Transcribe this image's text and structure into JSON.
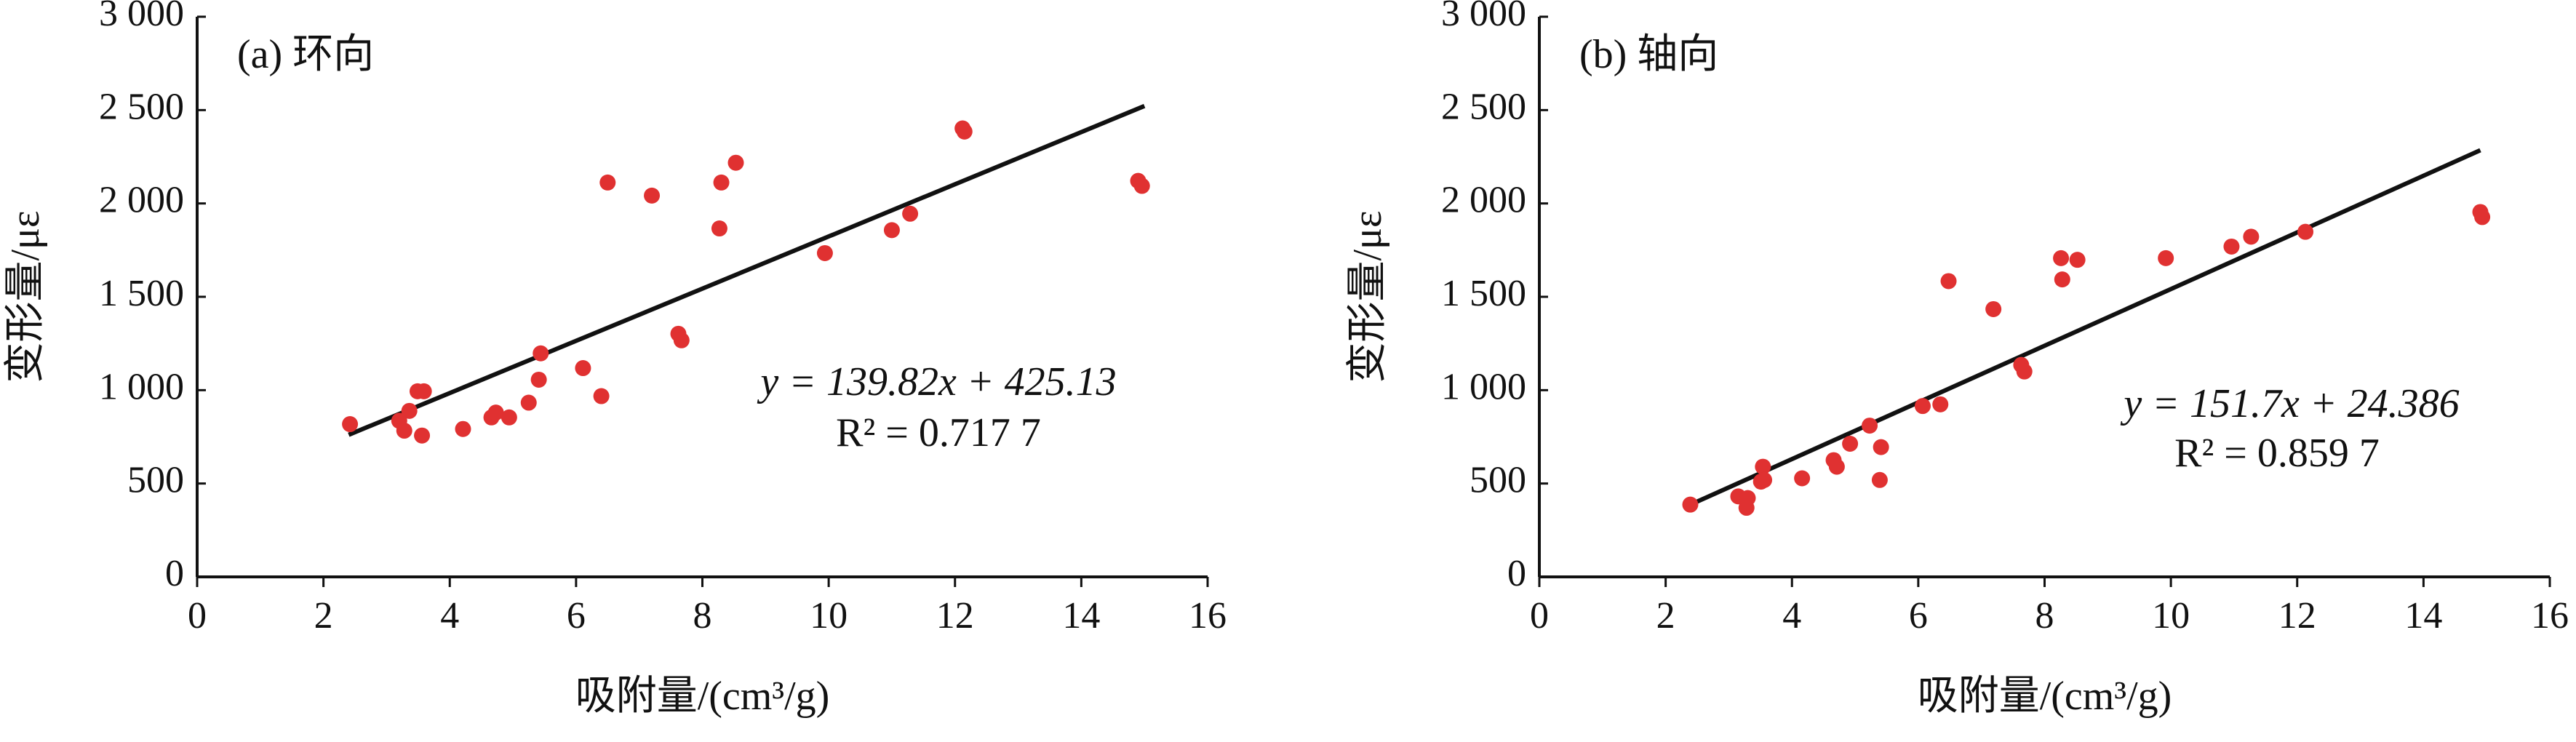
{
  "chart_data": [
    {
      "type": "scatter",
      "title": "(a) 环向",
      "x_label": "吸附量/(cm³/g)",
      "y_label": "变形量/με",
      "equation": "y = 139.82x + 425.13",
      "r_squared": "R² = 0.717 7",
      "color": "#e03131",
      "x": [
        2.42,
        3.2,
        3.28,
        3.36,
        3.49,
        3.59,
        3.56,
        4.21,
        4.66,
        4.73,
        4.94,
        5.25,
        5.41,
        5.44,
        6.11,
        6.4,
        6.5,
        7.2,
        7.62,
        7.67,
        8.27,
        8.3,
        8.53,
        9.94,
        11.0,
        11.29,
        12.12,
        12.15,
        14.9,
        14.96
      ],
      "values": [
        818,
        836,
        783,
        889,
        994,
        994,
        757,
        792,
        854,
        880,
        854,
        933,
        1056,
        1197,
        1118,
        968,
        2112,
        2042,
        1302,
        1267,
        1866,
        2112,
        2218,
        1734,
        1857,
        1945,
        2402,
        2385,
        2121,
        2094
      ],
      "fit_line": {
        "x": [
          2.4,
          15
        ],
        "y": [
          761,
          2522
        ]
      },
      "xlim": [
        0,
        16
      ],
      "xticks": [
        0,
        2,
        4,
        6,
        8,
        10,
        12,
        14,
        16
      ],
      "ylim": [
        0,
        3000
      ],
      "yticks": [
        0,
        500,
        {
          "value": 1000,
          "label": "1 000"
        },
        {
          "value": 1500,
          "label": "1 500"
        },
        {
          "value": 2000,
          "label": "2 000"
        },
        {
          "value": 2500,
          "label": "2 500"
        },
        {
          "value": 3000,
          "label": "3 000"
        }
      ]
    },
    {
      "type": "scatter",
      "title": "(b) 轴向",
      "x_label": "吸附量/(cm³/g)",
      "y_label": "变形量/με",
      "equation": "y = 151.7x + 24.386",
      "r_squared": "R² = 0.859 7",
      "color": "#e03131",
      "x": [
        2.39,
        3.15,
        3.28,
        3.3,
        3.54,
        3.51,
        3.56,
        4.16,
        4.66,
        4.71,
        4.92,
        5.23,
        5.39,
        5.41,
        6.07,
        6.35,
        6.48,
        7.19,
        7.63,
        7.68,
        8.26,
        8.28,
        8.52,
        9.92,
        10.96,
        11.27,
        12.13,
        14.9,
        14.93
      ],
      "values": [
        387,
        431,
        370,
        422,
        590,
        510,
        519,
        528,
        625,
        590,
        713,
        810,
        519,
        695,
        915,
        924,
        1584,
        1434,
        1135,
        1100,
        1707,
        1593,
        1698,
        1707,
        1769,
        1822,
        1848,
        1954,
        1927
      ],
      "fit_line": {
        "x": [
          2.4,
          14.9
        ],
        "y": [
          388,
          2285
        ]
      },
      "xlim": [
        0,
        16
      ],
      "xticks": [
        0,
        2,
        4,
        6,
        8,
        10,
        12,
        14,
        16
      ],
      "ylim": [
        0,
        3000
      ],
      "yticks": [
        0,
        500,
        {
          "value": 1000,
          "label": "1 000"
        },
        {
          "value": 1500,
          "label": "1 500"
        },
        {
          "value": 2000,
          "label": "2 000"
        },
        {
          "value": 2500,
          "label": "2 500"
        },
        {
          "value": 3000,
          "label": "3 000"
        }
      ]
    }
  ]
}
